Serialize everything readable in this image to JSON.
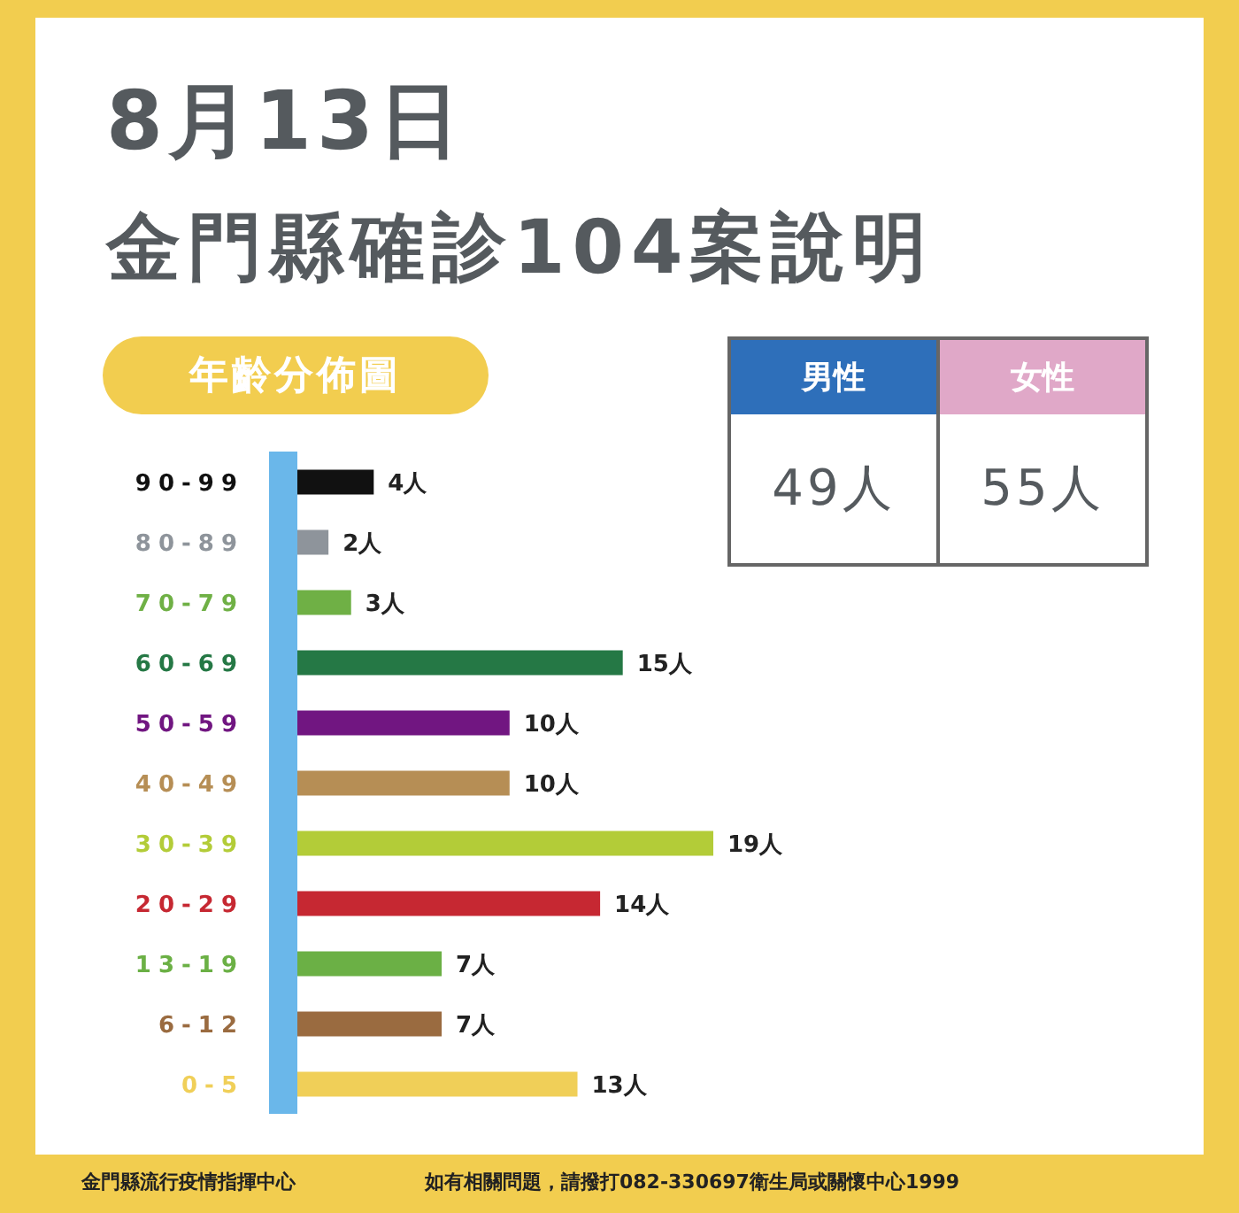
{
  "chart_data": [
    {
      "type": "bar",
      "orientation": "horizontal",
      "title": "8月13日",
      "subtitle": "金門縣確診104案說明",
      "annotations": [
        "年齡分佈圖",
        "金門縣流行疫情指揮中心",
        "如有相關問題，請撥打082-330697衛生局或關懷中心1999"
      ],
      "categories": [
        "90-99",
        "80-89",
        "70-79",
        "60-69",
        "50-59",
        "40-49",
        "30-39",
        "20-29",
        "13-19",
        "6-12",
        "0-5"
      ],
      "values": [
        4,
        2,
        3,
        15,
        10,
        10,
        19,
        14,
        7,
        7,
        13
      ],
      "colors": [
        "#111111",
        "#8e949b",
        "#6fb045",
        "#257845",
        "#711681",
        "#b68e55",
        "#b3cc38",
        "#c62832",
        "#6bb045",
        "#9a6b40",
        "#f0cf58"
      ],
      "value_labels": [
        "4人",
        "2人",
        "3人",
        "15人",
        "10人",
        "10人",
        "19人",
        "14人",
        "7人",
        "7人",
        "13人"
      ],
      "legend": false,
      "grid": false
    },
    {
      "type": "other",
      "categories": [
        "男性",
        "女性"
      ],
      "values": [
        49,
        55
      ],
      "value_labels": [
        "49人",
        "55人"
      ],
      "colors": [
        "#2e6fba",
        "#e0a8c8"
      ]
    }
  ]
}
